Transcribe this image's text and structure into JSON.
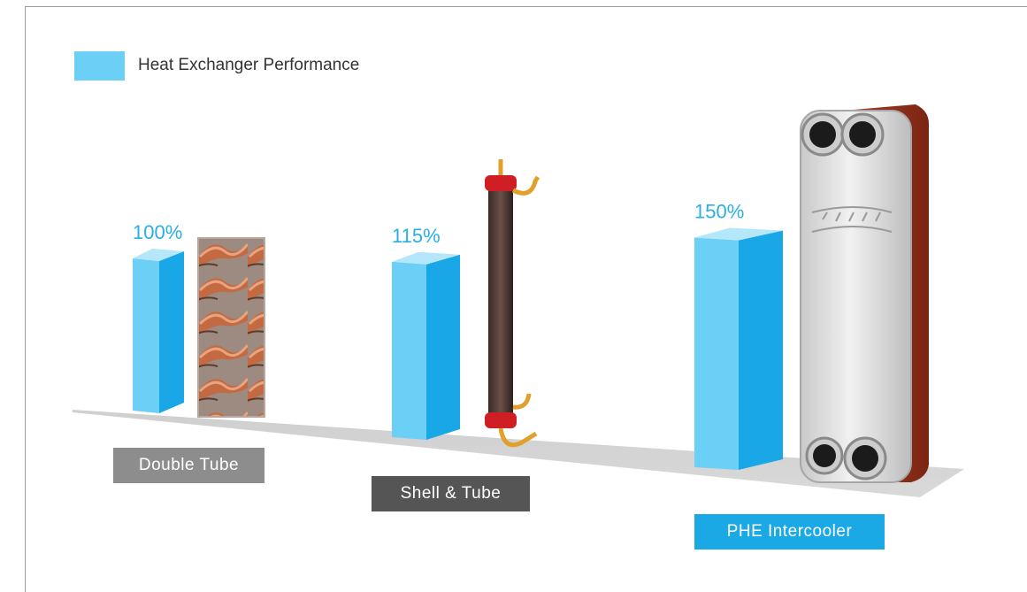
{
  "colors": {
    "bar_front": "#6ccff6",
    "bar_side": "#1aa7e8",
    "bar_top": "#b5e7fb",
    "floor": "#d0d0d0",
    "value_text": "#2aaee6",
    "label_double": "#8d8d8d",
    "label_shell": "#555555",
    "label_phe": "#1ba9e6"
  },
  "chart_data": {
    "type": "bar",
    "title": "",
    "legend": [
      "Heat Exchanger Performance"
    ],
    "categories": [
      "Double Tube",
      "Shell & Tube",
      "PHE Intercooler"
    ],
    "series": [
      {
        "name": "Heat Exchanger Performance",
        "values": [
          100,
          115,
          150
        ]
      }
    ],
    "data_labels": [
      "100%",
      "115%",
      "150%"
    ],
    "unit": "%",
    "illustrations": [
      "copper-tube-icon",
      "shell-and-tube-exchanger-icon",
      "plate-heat-exchanger-icon"
    ]
  }
}
